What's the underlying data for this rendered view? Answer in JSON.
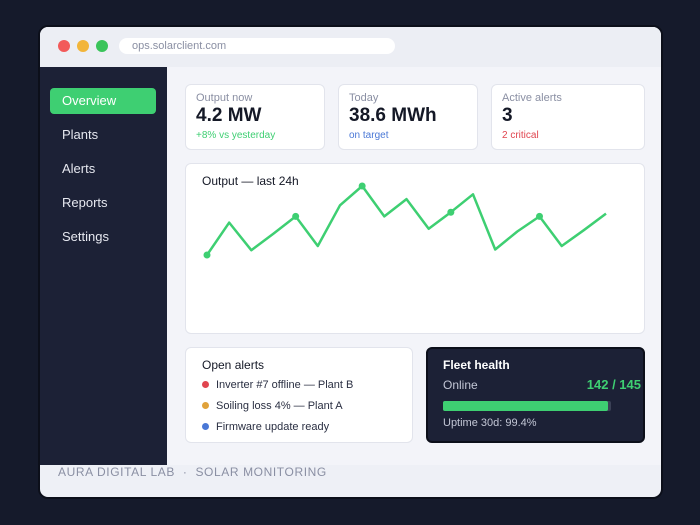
{
  "window": {
    "url": "ops.solarclient.com"
  },
  "sidebar": {
    "items": [
      {
        "label": "Overview",
        "active": true
      },
      {
        "label": "Plants"
      },
      {
        "label": "Alerts"
      },
      {
        "label": "Reports"
      },
      {
        "label": "Settings"
      }
    ]
  },
  "stats": {
    "output": {
      "label": "Output now",
      "value": "4.2 MW",
      "sub": "+8% vs yesterday",
      "sub_color": "#3ecf72"
    },
    "today": {
      "label": "Today",
      "value": "38.6 MWh",
      "sub": "on target",
      "sub_color": "#4a78d6"
    },
    "alerts": {
      "label": "Active alerts",
      "value": "3",
      "sub": "2 critical",
      "sub_color": "#e0454f"
    }
  },
  "chart": {
    "title": "Output — last 24h",
    "line_color": "#3ecf72"
  },
  "chart_data": {
    "type": "line",
    "title": "Output — last 24h",
    "series": [
      {
        "values": [
          0.0,
          0.47,
          0.07,
          0.31,
          0.56,
          0.13,
          0.72,
          1.0,
          0.56,
          0.81,
          0.38,
          0.62,
          0.88,
          0.08,
          0.34,
          0.56,
          0.13,
          0.36,
          0.6
        ]
      }
    ],
    "markers_at": [
      0,
      4,
      7,
      11,
      15
    ],
    "grid": false,
    "xlabel": "",
    "ylabel": ""
  },
  "open_alerts": {
    "title": "Open alerts",
    "items": [
      {
        "text": "Inverter #7 offline — Plant B",
        "color": "#e0454f"
      },
      {
        "text": "Soiling loss 4% — Plant A",
        "color": "#e0a23a"
      },
      {
        "text": "Firmware update ready",
        "color": "#4a78d6"
      }
    ]
  },
  "fleet": {
    "title": "Fleet health",
    "online_label": "Online",
    "online_count": "142 / 145",
    "online_fraction": 0.9793,
    "uptime": "Uptime 30d: 99.4%"
  },
  "footer": {
    "brand": "AURA DIGITAL LAB",
    "separator": "·",
    "product": "SOLAR MONITORING"
  }
}
